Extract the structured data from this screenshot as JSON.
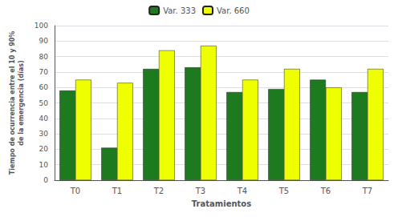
{
  "chart_data": {
    "type": "bar",
    "categories": [
      "T0",
      "T1",
      "T2",
      "T3",
      "T4",
      "T5",
      "T6",
      "T7"
    ],
    "series": [
      {
        "name": "Var. 333",
        "color": "#1e7a1e",
        "values": [
          58,
          21,
          72,
          73,
          57,
          59,
          65,
          57
        ]
      },
      {
        "name": "Var. 660",
        "color": "#eeff00",
        "values": [
          65,
          63,
          84,
          87,
          65,
          72,
          60,
          72
        ]
      }
    ],
    "xlabel": "Tratamientos",
    "ylabel": "Tiempo de ocurrencia entre el 10 y 90%\nde la emergencia (días)",
    "ylim": [
      0,
      100
    ],
    "yticks": [
      0,
      10,
      20,
      30,
      40,
      50,
      60,
      70,
      80,
      90,
      100
    ],
    "grid": true,
    "legend": "top"
  }
}
